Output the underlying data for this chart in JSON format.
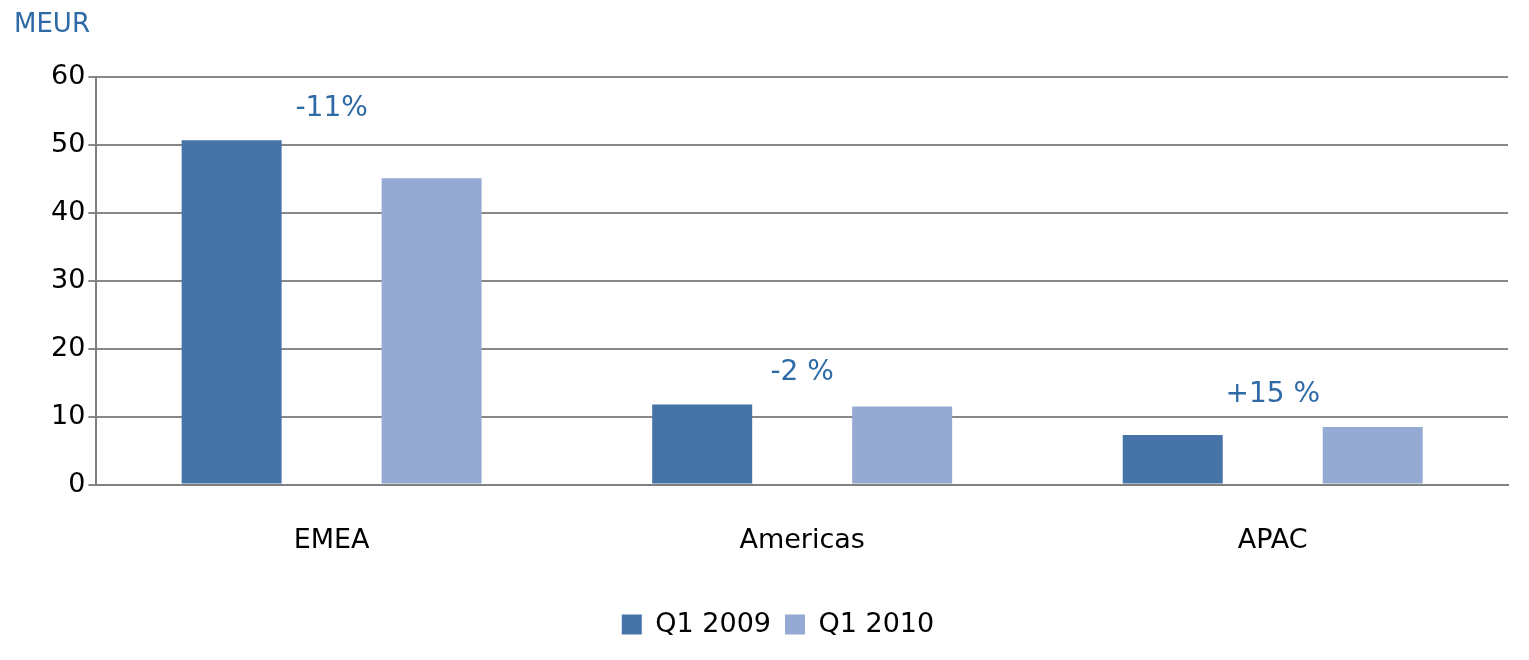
{
  "chart_data": {
    "type": "bar",
    "ylabel": "MEUR",
    "categories": [
      "EMEA",
      "Americas",
      "APAC"
    ],
    "series": [
      {
        "name": "Q1 2009",
        "color": "#4673a8",
        "values": [
          50.7,
          11.8,
          7.3
        ]
      },
      {
        "name": "Q1 2010",
        "color": "#95aad2",
        "values": [
          45.1,
          11.5,
          8.5
        ]
      }
    ],
    "ylim": [
      0,
      60
    ],
    "yticks": [
      0,
      10,
      20,
      30,
      40,
      50,
      60
    ],
    "grid": "y",
    "legend": "bottom",
    "annotations": [
      "-11%",
      "-2 %",
      "+15 %"
    ]
  }
}
